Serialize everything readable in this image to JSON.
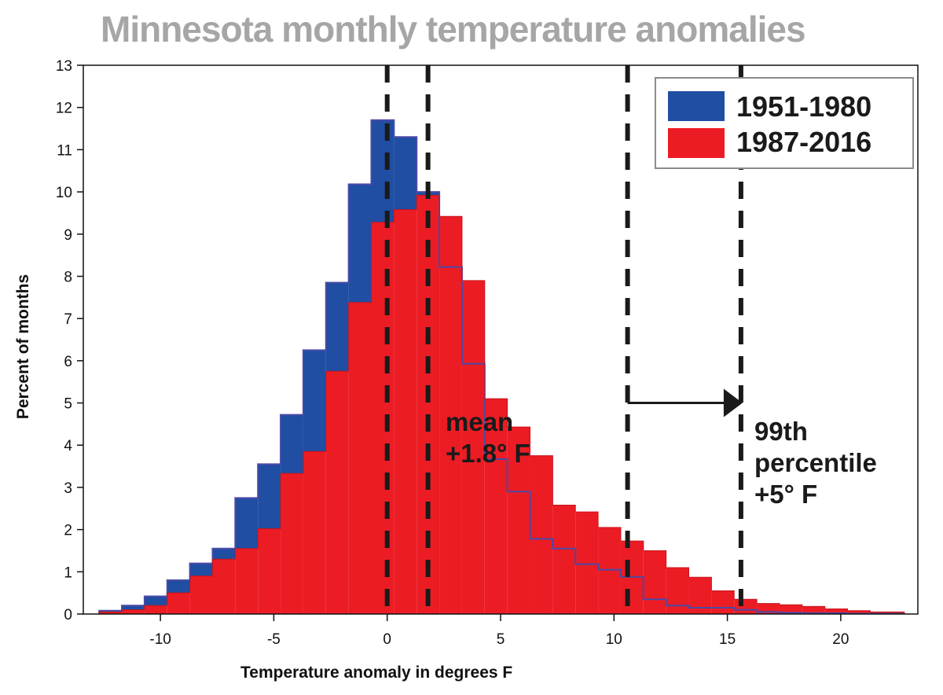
{
  "chart_data": {
    "type": "bar",
    "title": "Minnesota monthly temperature anomalies",
    "xlabel": "Temperature anomaly in degrees F",
    "ylabel": "Percent of months",
    "xlim": [
      -13.4,
      23.4
    ],
    "ylim": [
      0,
      13
    ],
    "xticks": [
      -10,
      -5,
      0,
      5,
      10,
      15,
      20
    ],
    "xtick_labels": [
      "-10",
      "-5",
      "0",
      "5",
      "10",
      "15",
      "20"
    ],
    "yticks": [
      0,
      1,
      2,
      3,
      4,
      5,
      6,
      7,
      8,
      9,
      10,
      11,
      12,
      13
    ],
    "ytick_labels": [
      "0",
      "1",
      "2",
      "3",
      "4",
      "5",
      "6",
      "7",
      "8",
      "9",
      "10",
      "11",
      "12",
      "13"
    ],
    "bin_edges": [
      -12.7,
      -11.7,
      -10.7,
      -9.7,
      -8.7,
      -7.7,
      -6.7,
      -5.7,
      -4.7,
      -3.7,
      -2.7,
      -1.7,
      -0.7,
      0.3,
      1.3,
      2.3,
      3.3,
      4.3,
      5.3,
      6.3,
      7.3,
      8.3,
      9.3,
      10.3,
      11.3,
      12.3,
      13.3,
      14.3,
      15.3,
      16.3,
      17.3,
      18.3,
      19.3,
      20.3,
      21.3,
      22.3,
      22.8
    ],
    "series": [
      {
        "name": "1951-1980",
        "color": "#1f4ea3",
        "values": [
          0.08,
          0.2,
          0.42,
          0.8,
          1.2,
          1.55,
          2.75,
          3.55,
          4.72,
          6.25,
          7.85,
          10.18,
          11.7,
          11.3,
          10.0,
          8.22,
          5.93,
          3.67,
          2.9,
          1.78,
          1.55,
          1.18,
          1.05,
          0.88,
          0.35,
          0.2,
          0.15,
          0.15,
          0.1,
          0.05,
          0.03,
          0.02,
          0.02,
          0.01,
          0.01,
          0.01
        ]
      },
      {
        "name": "1987-2016",
        "color": "#ec1c24",
        "values": [
          0.05,
          0.1,
          0.2,
          0.5,
          0.9,
          1.3,
          1.55,
          2.02,
          3.33,
          3.85,
          5.75,
          7.38,
          9.28,
          9.58,
          9.92,
          9.42,
          7.9,
          5.1,
          4.43,
          3.75,
          2.58,
          2.42,
          2.05,
          1.73,
          1.5,
          1.1,
          0.87,
          0.55,
          0.35,
          0.25,
          0.22,
          0.18,
          0.12,
          0.08,
          0.05,
          0.05
        ]
      }
    ],
    "vlines": [
      0,
      1.8,
      10.6,
      15.6
    ],
    "vline_style": "dashed",
    "arrow": {
      "from": 10.6,
      "to": 15.6,
      "y": 5
    },
    "annotations": [
      {
        "lines": [
          "mean",
          "+1.8° F"
        ]
      },
      {
        "lines": [
          "99th",
          "percentile",
          "+5° F"
        ]
      }
    ],
    "legend_position": "top-right",
    "grid": false
  }
}
